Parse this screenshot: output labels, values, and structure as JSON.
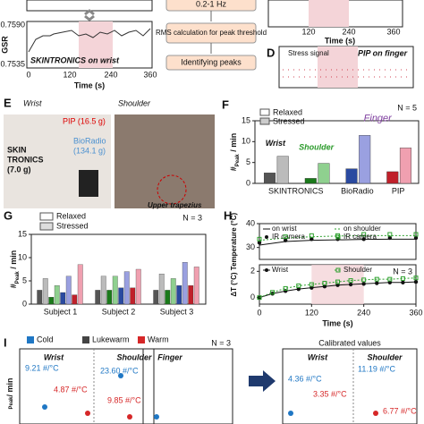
{
  "panels": {
    "C": {
      "y_label": "GSR",
      "yticks": [
        "0.7590",
        "0.7535"
      ],
      "caption": "SKINTRONICS on wrist",
      "xticks": [
        "0",
        "120",
        "240",
        "360"
      ],
      "x_label": "Time (s)"
    },
    "flow": {
      "steps": [
        "0.2-1 Hz",
        "RMS calculation for peak threshold",
        "Identifying peaks"
      ]
    },
    "D": {
      "letter": "D",
      "title": "PIP on finger",
      "legend": "Stress signal",
      "xticks": [
        "120",
        "240",
        "360"
      ],
      "x_label": "Time (s)"
    },
    "E": {
      "letter": "E",
      "wrist": "Wrist",
      "shoulder": "Shoulder",
      "pip": "PIP (16.5 g)",
      "skin": "SKIN",
      "tronics": "TRONICS",
      "skin_mass": "(7.0 g)",
      "bioradio": "BioRadio",
      "bioradio_mass": "(134.1 g)",
      "muscle": "Upper trapezius"
    },
    "I": {
      "letter": "I",
      "legend": [
        {
          "name": "Cold",
          "color": "#1f77c4"
        },
        {
          "name": "Lukewarm",
          "color": "#444444"
        },
        {
          "name": "Warm",
          "color": "#d62728"
        }
      ],
      "wrist": "Wrist",
      "shoulder": "Shoulder",
      "finger": "Finger",
      "n_label": "N = 3",
      "calibrated": "Calibrated values",
      "y_label": "/ min",
      "y_sub": "Peak",
      "annotations": [
        {
          "label": "9.21 #/°C",
          "color": "#1f77c4"
        },
        {
          "label": "4.87 #/°C",
          "color": "#d62728"
        },
        {
          "label": "23.60 #/°C",
          "color": "#1f77c4"
        },
        {
          "label": "9.85 #/°C",
          "color": "#d62728"
        },
        {
          "label": "4.36 #/°C",
          "color": "#1f77c4"
        },
        {
          "label": "3.35 #/°C",
          "color": "#d62728"
        },
        {
          "label": "11.19 #/°C",
          "color": "#1f77c4"
        },
        {
          "label": "6.77 #/°C",
          "color": "#d62728"
        }
      ]
    }
  },
  "chart_data": [
    {
      "type": "bar",
      "letter": "F",
      "n_label": "N = 5",
      "y_label": "#",
      "y_sub": "Peak",
      "y_tail": " / min",
      "categories": [
        null,
        null,
        "BioRadio",
        "PIP"
      ],
      "device_label": "SKINTRONICS",
      "wrist": "Wrist",
      "shoulder": "Shoulder",
      "finger": "Finger",
      "series": [
        {
          "name": "Relaxed",
          "color": "#ffffff",
          "values": [
            2.5,
            1.2,
            3.5,
            2.8
          ],
          "colors": [
            "#555555",
            "#1a7a1a",
            "#2a4aa0",
            "#c0202a"
          ]
        },
        {
          "name": "Stressed",
          "color": "#cccccc",
          "values": [
            6.5,
            4.8,
            11.5,
            8.5
          ],
          "colors": [
            "#bbbbbb",
            "#8fd08f",
            "#9aa0e0",
            "#f0a0b0"
          ]
        }
      ],
      "ylim": [
        0,
        15
      ],
      "yticks": [
        0,
        5,
        10,
        15
      ]
    },
    {
      "type": "groupbar",
      "letter": "G",
      "n_label": "N = 3",
      "y_label": "#",
      "y_sub": "Peak",
      "y_tail": " / min",
      "categories": [
        "Subject 1",
        "Subject 2",
        "Subject 3"
      ],
      "legend": [
        {
          "name": "Relaxed",
          "color": "#ffffff"
        },
        {
          "name": "Stressed",
          "color": "#dddddd"
        }
      ],
      "colors": [
        "#555555",
        "#bbbbbb",
        "#1a7a1a",
        "#8fd08f",
        "#2a4aa0",
        "#9aa0e0",
        "#c0202a",
        "#f0a0b0"
      ],
      "values": [
        [
          3,
          5.5,
          1.5,
          4,
          2.5,
          6,
          2,
          8.5
        ],
        [
          3,
          6,
          3,
          6,
          3.5,
          7,
          3.5,
          7.5
        ],
        [
          3,
          6.5,
          3,
          5.5,
          4,
          9,
          4,
          8
        ]
      ],
      "ylim": [
        0,
        15
      ],
      "yticks": [
        0,
        5,
        10,
        15
      ]
    },
    {
      "type": "line",
      "letter": "H",
      "y_label": "Temperature (°C)",
      "x": [
        0,
        60,
        120,
        180,
        240,
        300,
        360
      ],
      "series": [
        {
          "name": "on wrist",
          "color": "#111111",
          "style": "solid",
          "marker": "none",
          "values": [
            31,
            32.5,
            33,
            33.2,
            33.4,
            33.5,
            33.5
          ]
        },
        {
          "name": "on shoulder",
          "color": "#2ca02c",
          "style": "dotted",
          "marker": "none",
          "values": [
            33,
            34,
            34.5,
            34.8,
            35,
            35,
            35
          ]
        },
        {
          "name": "IR camera",
          "color": "#111111",
          "style": "none",
          "marker": "circle",
          "values": [
            32,
            33,
            33.5,
            33.5,
            33.5,
            34,
            34
          ]
        },
        {
          "name": "IR camera",
          "color": "#2ca02c",
          "style": "none",
          "marker": "square",
          "values": [
            33.5,
            34.5,
            35,
            35,
            35.5,
            35.5,
            35.5
          ]
        }
      ],
      "xlim": [
        0,
        360
      ],
      "ylim": [
        25,
        40
      ],
      "yticks": [
        30,
        40
      ]
    },
    {
      "type": "line",
      "y_label": "ΔT (°C)",
      "n_label": "N = 3",
      "x_label": "Time (s)",
      "highlight": [
        120,
        240
      ],
      "x": [
        0,
        30,
        60,
        90,
        120,
        150,
        180,
        210,
        240,
        270,
        300,
        330,
        360
      ],
      "series": [
        {
          "name": "Wrist",
          "color": "#111111",
          "style": "solid",
          "marker": "circle",
          "values": [
            0,
            0.3,
            0.5,
            0.65,
            0.75,
            0.85,
            0.95,
            1.0,
            1.05,
            1.1,
            1.15,
            1.15,
            1.2
          ]
        },
        {
          "name": "Shoulder",
          "color": "#2ca02c",
          "style": "dotted",
          "marker": "square",
          "values": [
            0,
            0.4,
            0.7,
            0.9,
            1.0,
            1.1,
            1.2,
            1.3,
            1.35,
            1.4,
            1.4,
            1.45,
            1.5
          ]
        }
      ],
      "xlim": [
        0,
        360
      ],
      "ylim": [
        -0.5,
        2.5
      ],
      "yticks": [
        0,
        2
      ],
      "xticks": [
        0,
        120,
        240,
        360
      ]
    }
  ]
}
